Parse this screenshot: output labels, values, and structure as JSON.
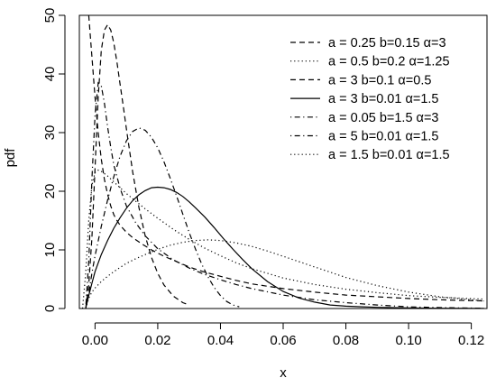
{
  "chart_data": {
    "type": "line",
    "title": "",
    "xlabel": "x",
    "ylabel": "pdf",
    "xlim": [
      -0.005,
      0.125
    ],
    "ylim": [
      0,
      50
    ],
    "x_ticks": [
      0.0,
      0.02,
      0.04,
      0.06,
      0.08,
      0.1,
      0.12
    ],
    "x_tick_labels": [
      "0.00",
      "0.02",
      "0.04",
      "0.06",
      "0.08",
      "0.10",
      "0.12"
    ],
    "y_ticks": [
      0,
      10,
      20,
      30,
      40,
      50
    ],
    "y_tick_labels": [
      "0",
      "10",
      "20",
      "30",
      "40",
      "50"
    ],
    "grid": false,
    "legend_position": "top-right",
    "series": [
      {
        "name": "a = 0.25 b=0.15 α=3",
        "dash": "dashed",
        "x": [
          -0.002,
          -0.001,
          0.0,
          0.001,
          0.002,
          0.003,
          0.004,
          0.005,
          0.006,
          0.007,
          0.008,
          0.01,
          0.012,
          0.015,
          0.018,
          0.022,
          0.026,
          0.03,
          0.035,
          0.04,
          0.045,
          0.05,
          0.06,
          0.07,
          0.08,
          0.09,
          0.1,
          0.11,
          0.124
        ],
        "y": [
          50,
          43,
          36,
          30,
          25.5,
          22,
          19.5,
          17.5,
          16,
          15,
          14.2,
          13,
          12.1,
          11,
          10,
          8.9,
          8,
          7.1,
          6.2,
          5.5,
          4.8,
          4.2,
          3.4,
          2.8,
          2.3,
          2,
          1.7,
          1.5,
          1.3
        ]
      },
      {
        "name": "a = 0.5 b=0.2 α=1.25",
        "dash": "dotted",
        "x": [
          -0.004,
          -0.003,
          -0.002,
          -0.001,
          0.0,
          0.001,
          0.002,
          0.004,
          0.006,
          0.008,
          0.01,
          0.013,
          0.016,
          0.02,
          0.025,
          0.03,
          0.035,
          0.04,
          0.045,
          0.05,
          0.06,
          0.07,
          0.08,
          0.09,
          0.1,
          0.11,
          0.124
        ],
        "y": [
          0,
          6,
          15,
          21,
          23.2,
          23.6,
          23.4,
          22.6,
          21.6,
          20.6,
          19.6,
          18.3,
          17,
          15.4,
          13.5,
          11.8,
          10.3,
          9,
          7.8,
          6.8,
          5.2,
          4.1,
          3.3,
          2.7,
          2.2,
          1.9,
          1.6
        ]
      },
      {
        "name": "a = 3 b=0.1 α=0.5",
        "dash": "dashed",
        "x": [
          -0.003,
          -0.002,
          -0.001,
          0.0,
          0.001,
          0.002,
          0.003,
          0.004,
          0.005,
          0.006,
          0.007,
          0.008,
          0.009,
          0.01,
          0.012,
          0.014,
          0.016,
          0.018,
          0.02,
          0.022,
          0.025,
          0.028,
          0.03
        ],
        "y": [
          0,
          4,
          12,
          24,
          36,
          44,
          47.5,
          48.4,
          47.5,
          45.3,
          42,
          38.2,
          34.5,
          30.6,
          23.3,
          17.2,
          12.4,
          8.7,
          6,
          4,
          2.1,
          1,
          0.6
        ]
      },
      {
        "name": "a = 3 b=0.01 α=1.5",
        "dash": "solid",
        "x": [
          -0.003,
          -0.002,
          -0.001,
          0.0,
          0.002,
          0.004,
          0.006,
          0.008,
          0.01,
          0.012,
          0.014,
          0.016,
          0.018,
          0.02,
          0.022,
          0.024,
          0.026,
          0.028,
          0.03,
          0.032,
          0.035,
          0.038,
          0.041,
          0.044,
          0.047,
          0.05,
          0.055,
          0.06,
          0.065,
          0.07,
          0.075,
          0.08,
          0.085,
          0.09,
          0.1,
          0.11,
          0.124
        ],
        "y": [
          0,
          2.2,
          4.3,
          6.3,
          9.2,
          11.6,
          13.7,
          15.5,
          17.1,
          18.4,
          19.4,
          20.1,
          20.6,
          20.7,
          20.6,
          20.3,
          19.8,
          19.1,
          18.2,
          17.2,
          15.6,
          13.8,
          11.9,
          10.1,
          8.4,
          6.8,
          4.6,
          2.9,
          1.8,
          1.1,
          0.6,
          0.4,
          0.3,
          0.2,
          0.1,
          0.05,
          0.02
        ]
      },
      {
        "name": "a = 0.05 b=1.5 α=3",
        "dash": "dotdash",
        "x": [
          -0.003,
          -0.002,
          -0.001,
          0.0,
          0.002,
          0.004,
          0.006,
          0.008,
          0.01,
          0.012,
          0.014,
          0.016,
          0.018,
          0.02,
          0.022,
          0.024,
          0.026,
          0.028,
          0.03,
          0.032,
          0.034,
          0.036,
          0.038,
          0.04,
          0.042,
          0.044,
          0.046
        ],
        "y": [
          0,
          2.5,
          6,
          9,
          14,
          18.5,
          22.5,
          26,
          28.6,
          30.2,
          30.8,
          30.4,
          29.2,
          27.4,
          25,
          22.2,
          19.2,
          16.1,
          13,
          10.2,
          7.6,
          5.4,
          3.6,
          2.2,
          1.2,
          0.6,
          0.3
        ]
      },
      {
        "name": "a = 5 b=0.01 α=1.5",
        "dash": "dotdash",
        "x": [
          -0.003,
          -0.002,
          -0.001,
          0.0,
          0.001,
          0.002,
          0.003,
          0.004,
          0.005,
          0.006,
          0.008,
          0.01,
          0.013,
          0.016,
          0.02,
          0.025,
          0.03,
          0.035,
          0.04,
          0.045,
          0.05,
          0.06,
          0.07,
          0.08,
          0.09,
          0.1,
          0.11,
          0.124
        ],
        "y": [
          0,
          8,
          22,
          33,
          38.5,
          38,
          35,
          31,
          27.5,
          24.5,
          20.5,
          17.5,
          14.6,
          12.4,
          10.2,
          8.3,
          6.9,
          5.8,
          4.9,
          4.1,
          3.4,
          2.3,
          1.5,
          1,
          0.6,
          0.3,
          0.15,
          0.05
        ]
      },
      {
        "name": "a = 1.5 b=0.01 α=1.5",
        "dash": "dotted",
        "x": [
          -0.003,
          -0.002,
          -0.001,
          0.0,
          0.002,
          0.004,
          0.006,
          0.008,
          0.01,
          0.013,
          0.016,
          0.02,
          0.024,
          0.028,
          0.032,
          0.036,
          0.04,
          0.045,
          0.05,
          0.055,
          0.06,
          0.065,
          0.07,
          0.075,
          0.08,
          0.09,
          0.1,
          0.11,
          0.124
        ],
        "y": [
          0,
          1.8,
          2.8,
          3.5,
          4.6,
          5.5,
          6.3,
          7,
          7.7,
          8.5,
          9.2,
          10.1,
          10.8,
          11.3,
          11.6,
          11.7,
          11.6,
          11.2,
          10.6,
          9.8,
          8.9,
          8,
          7.1,
          6.2,
          5.3,
          3.9,
          2.8,
          2,
          1.3
        ]
      }
    ]
  }
}
